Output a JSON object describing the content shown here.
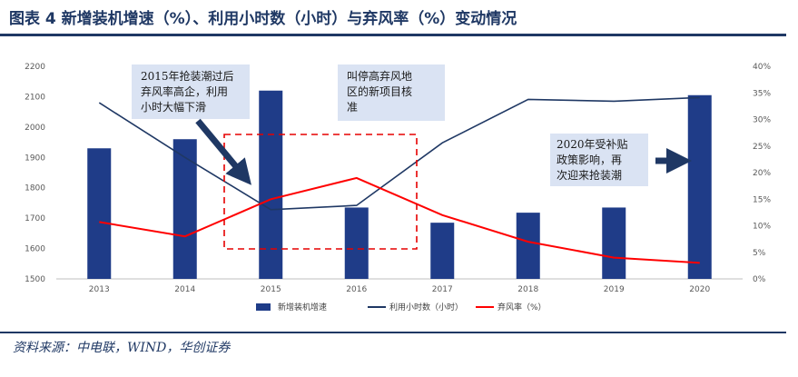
{
  "title": "图表 4   新增装机增速（%）、利用小时数（小时）与弃风率（%）变动情况",
  "source": "资料来源：中电联，WIND，华创证券",
  "chart_data": {
    "type": "bar",
    "categories": [
      "2013",
      "2014",
      "2015",
      "2016",
      "2017",
      "2018",
      "2019",
      "2020"
    ],
    "y_left": {
      "min": 1500,
      "max": 2200,
      "step": 100,
      "ticks": [
        "1500",
        "1600",
        "1700",
        "1800",
        "1900",
        "2000",
        "2100",
        "2200"
      ]
    },
    "y_right": {
      "min": 0,
      "max": 40,
      "step": 5,
      "ticks": [
        "0%",
        "5%",
        "10%",
        "15%",
        "20%",
        "25%",
        "30%",
        "35%",
        "40%"
      ]
    },
    "series": [
      {
        "name": "新增装机增速",
        "type": "bar",
        "axis": "left",
        "color": "#1f3c88",
        "values": [
          1930,
          1960,
          2120,
          1735,
          1685,
          1718,
          1735,
          2105
        ]
      },
      {
        "name": "利用小时数（小时）",
        "type": "line",
        "axis": "left",
        "color": "#1f3864",
        "values": [
          2080,
          1900,
          1728,
          1742,
          1948,
          2091,
          2085,
          2097
        ]
      },
      {
        "name": "弃风率（%）",
        "type": "line",
        "axis": "right",
        "color": "#ff0000",
        "values": [
          10.7,
          8.0,
          15.0,
          19.0,
          12.0,
          7.0,
          4.0,
          3.0
        ]
      }
    ],
    "annotations": [
      {
        "lines": [
          "2015年抢装潮过后",
          "弃风率高企，利用",
          "小时大幅下滑"
        ]
      },
      {
        "lines": [
          "叫停高弃风地",
          "区的新项目核",
          "准"
        ]
      },
      {
        "lines": [
          "2020年受补贴",
          "政策影响，再",
          "次迎来抢装潮"
        ]
      }
    ],
    "grid": false,
    "legend_position": "bottom"
  }
}
